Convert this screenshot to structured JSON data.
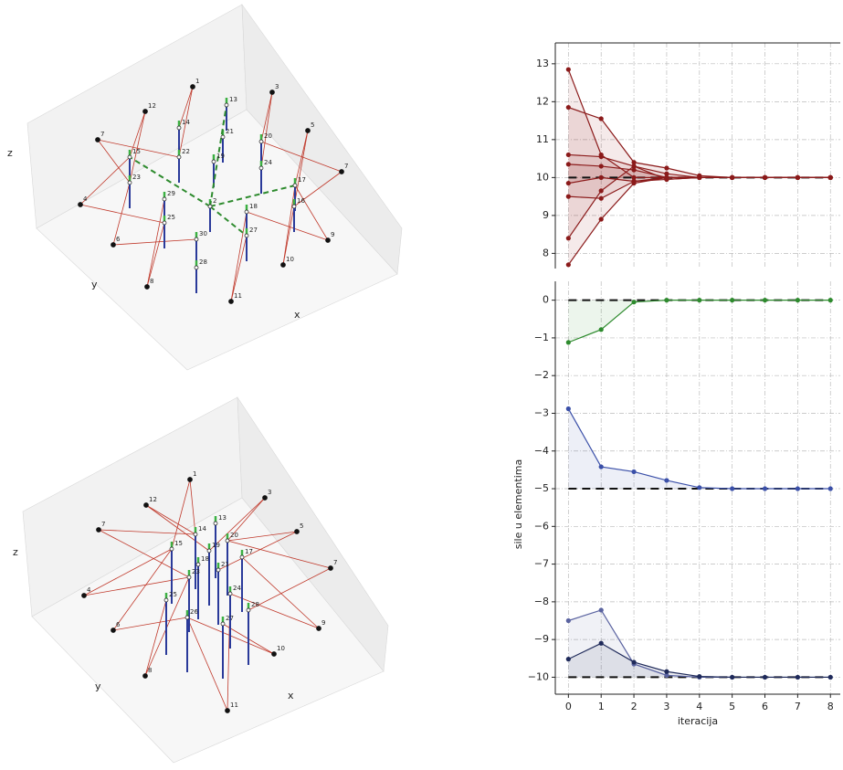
{
  "chart_data": [
    {
      "type": "3d-truss",
      "xlabel": "x",
      "ylabel": "y",
      "zlabel": "z",
      "node_labels": [
        "1",
        "3",
        "12",
        "7",
        "5",
        "7",
        "4",
        "6",
        "9",
        "8",
        "10",
        "11",
        "13",
        "14",
        "21",
        "20",
        "15",
        "22",
        "19",
        "24",
        "17",
        "23",
        "29",
        "2",
        "16",
        "18",
        "25",
        "27",
        "30",
        "28"
      ]
    },
    {
      "type": "3d-truss",
      "xlabel": "x",
      "ylabel": "y",
      "zlabel": "z",
      "node_labels": [
        "1",
        "3",
        "12",
        "7",
        "5",
        "7",
        "4",
        "6",
        "9",
        "8",
        "10",
        "11",
        "13",
        "14",
        "20",
        "15",
        "17",
        "19",
        "18",
        "21",
        "23",
        "25",
        "24",
        "26",
        "27",
        "28"
      ]
    },
    {
      "type": "line",
      "x": [
        0,
        1,
        2,
        3,
        4,
        5,
        6,
        7,
        8
      ],
      "xlim": [
        -0.4,
        8.3
      ],
      "ylim": [
        7.6,
        13.55
      ],
      "yticks": [
        8,
        9,
        10,
        11,
        12,
        13
      ],
      "grid": true,
      "reference_lines": [
        10
      ],
      "fill": true,
      "series": [
        {
          "color": "#8b1a1a",
          "values": [
            12.85,
            10.6,
            10.0,
            10.0,
            10.0,
            10.0,
            10.0,
            10.0,
            10.0
          ]
        },
        {
          "color": "#8b1a1a",
          "values": [
            11.85,
            11.55,
            10.4,
            10.25,
            10.05,
            10.0,
            10.0,
            10.0,
            10.0
          ]
        },
        {
          "color": "#8b1a1a",
          "values": [
            10.6,
            10.55,
            10.3,
            10.1,
            10.0,
            10.0,
            10.0,
            10.0,
            10.0
          ]
        },
        {
          "color": "#8b1a1a",
          "values": [
            10.35,
            10.3,
            10.2,
            10.0,
            10.0,
            10.0,
            10.0,
            10.0,
            10.0
          ]
        },
        {
          "color": "#8b1a1a",
          "values": [
            9.85,
            10.0,
            9.9,
            9.95,
            10.0,
            10.0,
            10.0,
            10.0,
            10.0
          ]
        },
        {
          "color": "#8b1a1a",
          "values": [
            9.5,
            9.45,
            9.9,
            10.0,
            10.0,
            10.0,
            10.0,
            10.0,
            10.0
          ]
        },
        {
          "color": "#8b1a1a",
          "values": [
            8.4,
            9.65,
            10.3,
            9.95,
            10.0,
            10.0,
            10.0,
            10.0,
            10.0
          ]
        },
        {
          "color": "#8b1a1a",
          "values": [
            7.7,
            8.9,
            9.85,
            10.0,
            10.0,
            10.0,
            10.0,
            10.0,
            10.0
          ]
        }
      ]
    },
    {
      "type": "line",
      "x": [
        0,
        1,
        2,
        3,
        4,
        5,
        6,
        7,
        8
      ],
      "xlim": [
        -0.4,
        8.3
      ],
      "ylim": [
        -10.45,
        0.5
      ],
      "xticks": [
        0,
        1,
        2,
        3,
        4,
        5,
        6,
        7,
        8
      ],
      "yticks": [
        0,
        {
          "value": -1,
          "label": "−1"
        },
        {
          "value": -2,
          "label": "−2"
        },
        {
          "value": -3,
          "label": "−3"
        },
        {
          "value": -4,
          "label": "−4"
        },
        {
          "value": -5,
          "label": "−5"
        },
        {
          "value": -6,
          "label": "−6"
        },
        {
          "value": -7,
          "label": "−7"
        },
        {
          "value": -8,
          "label": "−8"
        },
        {
          "value": -9,
          "label": "−9"
        },
        {
          "value": -10,
          "label": "−10"
        }
      ],
      "grid": true,
      "reference_lines": [
        0,
        -5,
        -10
      ],
      "fill": true,
      "xlabel": "iteracija",
      "ylabel": "sile u elementima",
      "series": [
        {
          "color": "#2e8b2e",
          "values": [
            -1.12,
            -0.78,
            -0.05,
            0,
            0,
            0,
            0,
            0,
            0
          ]
        },
        {
          "color": "#3a4fa8",
          "values": [
            -2.88,
            -4.42,
            -4.55,
            -4.78,
            -4.97,
            -5.0,
            -5.0,
            -5.0,
            -5.0
          ]
        },
        {
          "color": "#5a63a0",
          "values": [
            -8.5,
            -8.22,
            -9.65,
            -9.95,
            -10.0,
            -10.0,
            -10.0,
            -10.0,
            -10.0
          ]
        },
        {
          "color": "#1f2a5a",
          "values": [
            -9.52,
            -9.1,
            -9.6,
            -9.85,
            -9.98,
            -10.0,
            -10.0,
            -10.0,
            -10.0
          ]
        }
      ]
    }
  ]
}
